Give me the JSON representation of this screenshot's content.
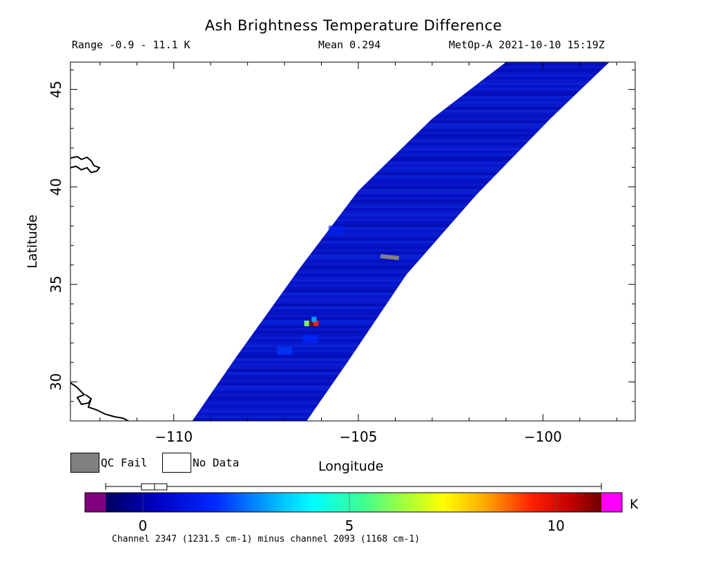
{
  "header": {
    "title": "Ash Brightness Temperature Difference",
    "range": "Range -0.9 - 11.1 K",
    "mean": "Mean 0.294",
    "satellite_time": "MetOp-A 2021-10-10 15:19Z"
  },
  "legend": {
    "qc_fail": "QC Fail",
    "no_data": "No Data",
    "qc_fail_color": "#808080",
    "no_data_color": "#ffffff"
  },
  "colorbar": {
    "unit": "K",
    "ticks": [
      "0",
      "5",
      "10"
    ],
    "tick_values": [
      0,
      5,
      10
    ],
    "range": [
      -0.9,
      11.1
    ],
    "under_color": "#800080",
    "over_color": "#ff00ff",
    "box_summary": {
      "q1": 0.1,
      "median": 0.25,
      "q3": 0.45,
      "min": -0.9,
      "max": 11.1
    },
    "note": "Channel 2347 (1231.5 cm-1) minus channel 2093 (1168 cm-1)"
  },
  "chart_data": {
    "type": "heatmap",
    "title": "Ash Brightness Temperature Difference",
    "xlabel": "Longitude",
    "ylabel": "Latitude",
    "xlim": [
      -112.8,
      -97.5
    ],
    "ylim": [
      28.0,
      46.4
    ],
    "xticks": [
      -110,
      -105,
      -100
    ],
    "xtick_labels": [
      "−110",
      "−105",
      "−100"
    ],
    "yticks": [
      30,
      35,
      40,
      45
    ],
    "ytick_labels": [
      "30",
      "35",
      "40",
      "45"
    ],
    "grid": false,
    "swath": {
      "left_edge": [
        [
          -109.5,
          28.0
        ],
        [
          -108.3,
          31.3
        ],
        [
          -106.6,
          35.8
        ],
        [
          -105.0,
          39.8
        ],
        [
          -103.0,
          43.5
        ],
        [
          -101.0,
          46.4
        ]
      ],
      "right_edge": [
        [
          -106.4,
          28.0
        ],
        [
          -105.3,
          31.0
        ],
        [
          -103.7,
          35.5
        ],
        [
          -101.8,
          39.6
        ],
        [
          -99.8,
          43.5
        ],
        [
          -98.2,
          46.4
        ]
      ],
      "background_value": 0.3
    },
    "anomalies": [
      {
        "lon": -106.25,
        "lat": 33.0,
        "value": 11.0
      },
      {
        "lon": -106.15,
        "lat": 33.0,
        "value": 9.5
      },
      {
        "lon": -106.4,
        "lat": 33.0,
        "value": 6.0
      },
      {
        "lon": -106.2,
        "lat": 33.2,
        "value": 3.0
      },
      {
        "lon": -107.0,
        "lat": 31.6,
        "value": 2.0
      },
      {
        "lon": -106.3,
        "lat": 32.2,
        "value": 1.8
      },
      {
        "lon": -105.6,
        "lat": 37.8,
        "value": 1.5
      }
    ],
    "qc_fail_segment": [
      [
        -104.4,
        36.45
      ],
      [
        -103.9,
        36.35
      ]
    ]
  }
}
